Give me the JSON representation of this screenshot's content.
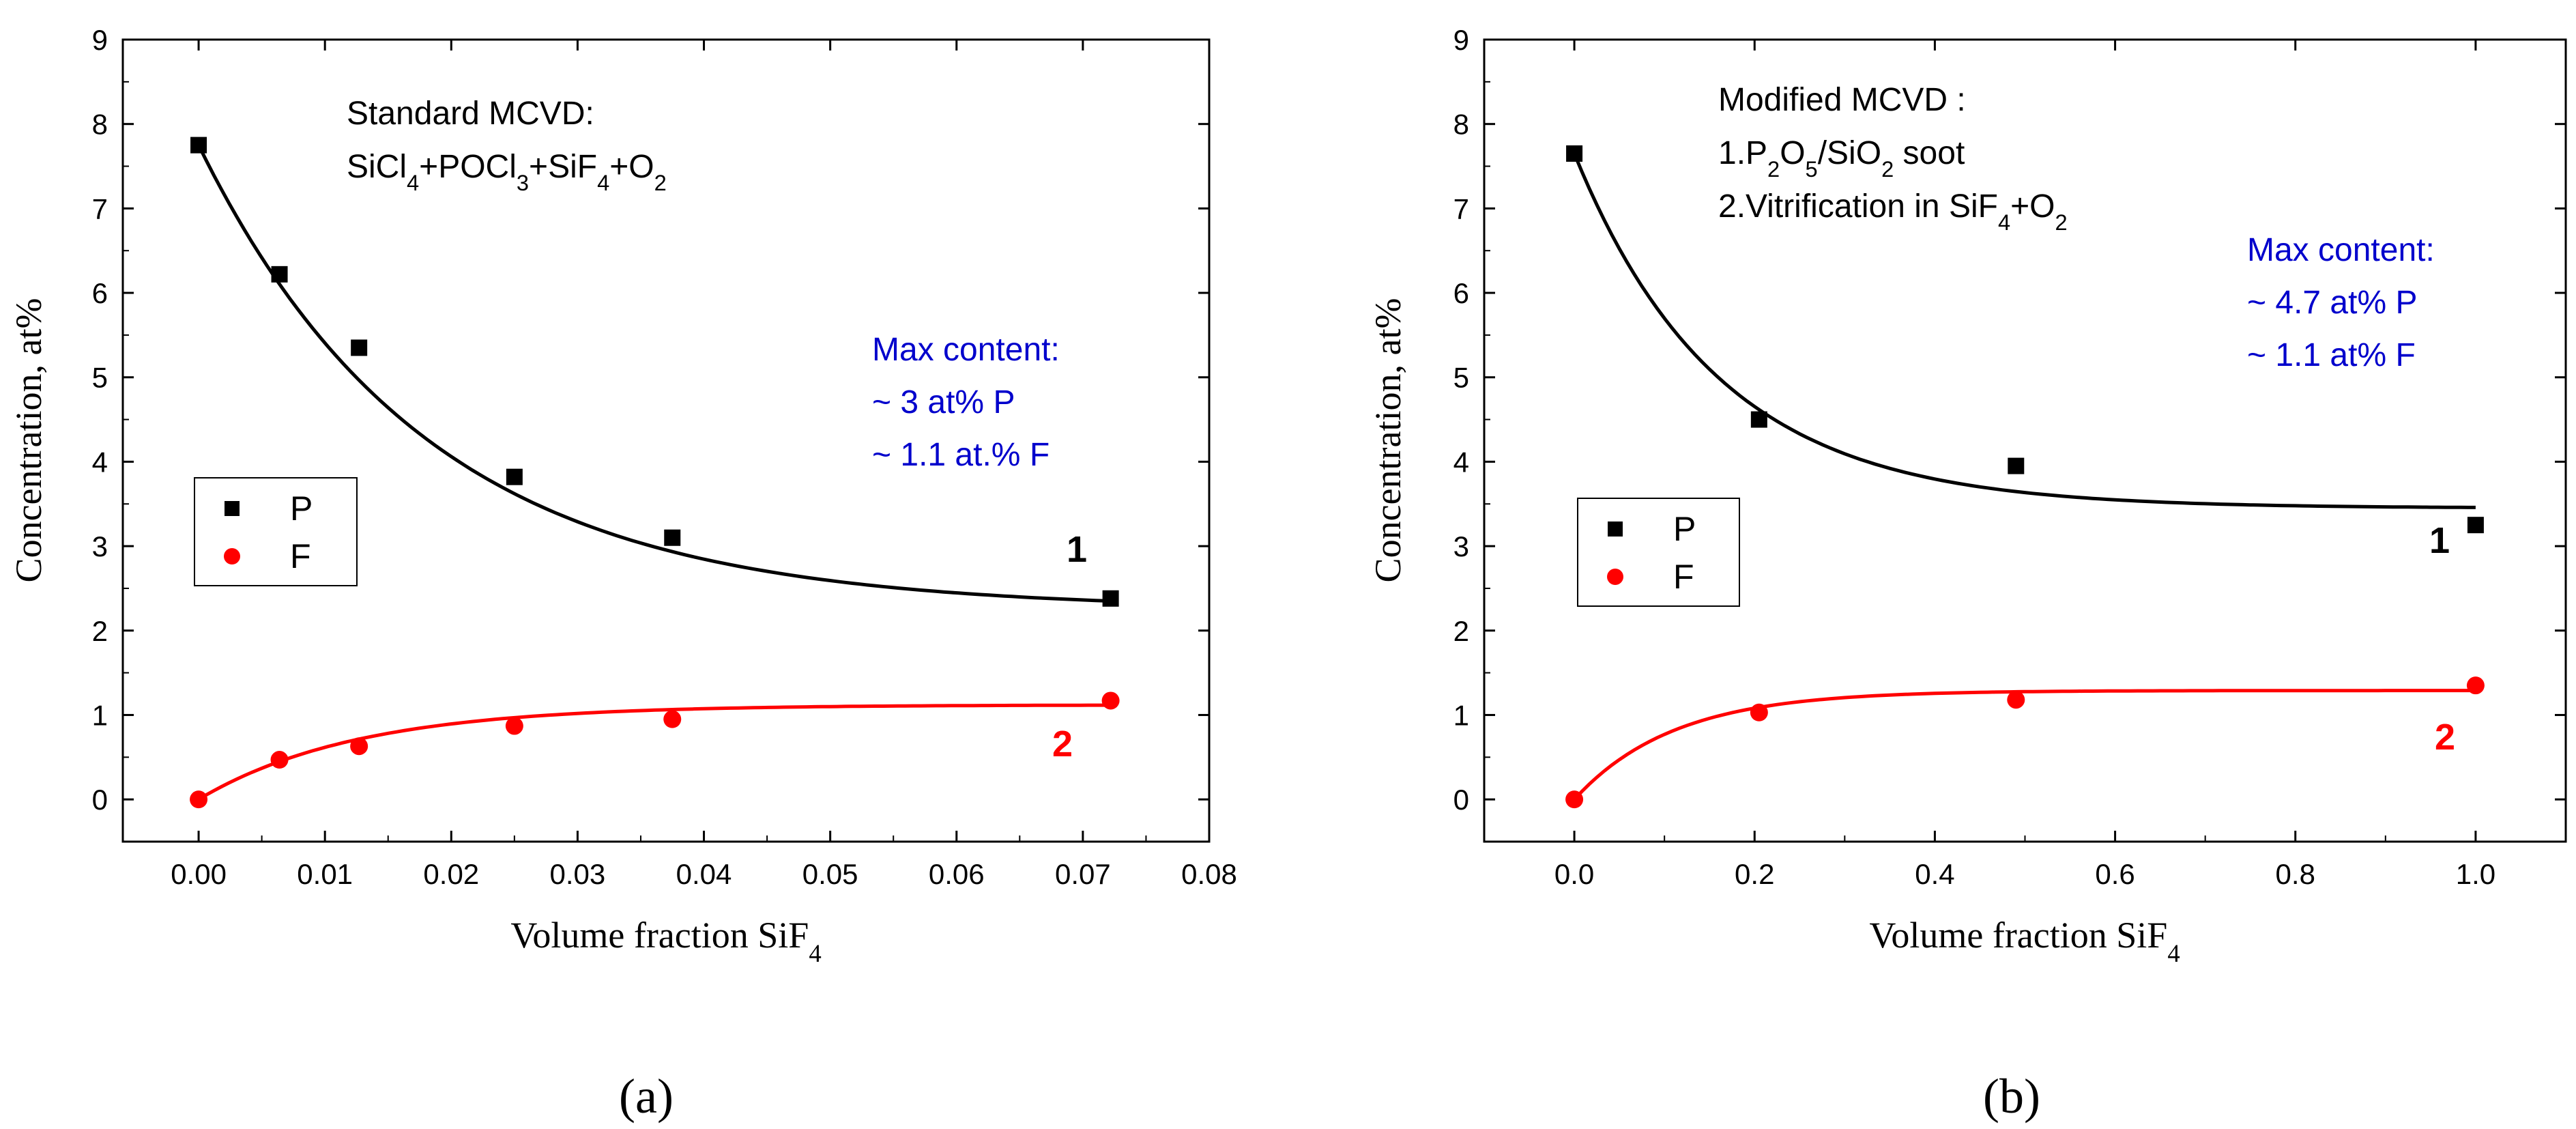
{
  "figure_labels": [
    "(a)",
    "(b)"
  ],
  "chart_data": [
    {
      "type": "scatter",
      "panel_label": "(a)",
      "xlabel": "Volume fraction SiF",
      "xlabel_sub": "4",
      "ylabel": "Concentration, at%",
      "xlim": [
        -0.006,
        0.08
      ],
      "ylim": [
        -0.5,
        9
      ],
      "xticks": [
        "0.00",
        "0.01",
        "0.02",
        "0.03",
        "0.04",
        "0.05",
        "0.06",
        "0.07",
        "0.08"
      ],
      "xtick_values": [
        0,
        0.01,
        0.02,
        0.03,
        0.04,
        0.05,
        0.06,
        0.07,
        0.08
      ],
      "yticks": [
        "0",
        "1",
        "2",
        "3",
        "4",
        "5",
        "6",
        "7",
        "8",
        "9"
      ],
      "ytick_values": [
        0,
        1,
        2,
        3,
        4,
        5,
        6,
        7,
        8,
        9
      ],
      "series": [
        {
          "name": "P",
          "marker": "square",
          "color": "#000000",
          "x": [
            0.0,
            0.0064,
            0.0127,
            0.025,
            0.0375,
            0.0722
          ],
          "y": [
            7.75,
            6.22,
            5.35,
            3.82,
            3.1,
            2.38
          ],
          "fit": {
            "model": "exponential",
            "y0": 2.25,
            "A": 5.5,
            "t": 0.018,
            "x_range": [
              0.0,
              0.0722
            ]
          },
          "curve_label": "1"
        },
        {
          "name": "F",
          "marker": "circle",
          "color": "#ff0000",
          "x": [
            0.0,
            0.0064,
            0.0127,
            0.025,
            0.0375,
            0.0722
          ],
          "y": [
            0.0,
            0.47,
            0.63,
            0.87,
            0.95,
            1.17
          ],
          "fit": {
            "model": "exponential",
            "y0": 1.12,
            "A": -1.12,
            "t": 0.0125,
            "x_range": [
              0.0,
              0.0722
            ]
          },
          "curve_label": "2"
        }
      ],
      "legend": {
        "position": "middle-left",
        "entries": [
          "P",
          "F"
        ]
      },
      "annotations": {
        "method": {
          "title": "Standard MCVD:",
          "formula_parts": [
            [
              "SiCl",
              "4"
            ],
            [
              "+POCl",
              "3"
            ],
            [
              "+SiF",
              "4"
            ],
            [
              "+O",
              "2"
            ]
          ]
        },
        "max_content": [
          "Max content:",
          "~ 3 at% P",
          "~ 1.1 at.% F"
        ],
        "max_content_color": "#0000cc"
      }
    },
    {
      "type": "scatter",
      "panel_label": "(b)",
      "xlabel": "Volume fraction SiF",
      "xlabel_sub": "4",
      "ylabel": "Concentration, at%",
      "xlim": [
        -0.1,
        1.1
      ],
      "ylim": [
        -0.5,
        9
      ],
      "xticks": [
        "0.0",
        "0.2",
        "0.4",
        "0.6",
        "0.8",
        "1.0"
      ],
      "xtick_values": [
        0,
        0.2,
        0.4,
        0.6,
        0.8,
        1.0
      ],
      "yticks": [
        "0",
        "1",
        "2",
        "3",
        "4",
        "5",
        "6",
        "7",
        "8",
        "9"
      ],
      "ytick_values": [
        0,
        1,
        2,
        3,
        4,
        5,
        6,
        7,
        8,
        9
      ],
      "series": [
        {
          "name": "P",
          "marker": "square",
          "color": "#000000",
          "x": [
            0.0,
            0.205,
            0.49,
            1.0
          ],
          "y": [
            7.65,
            4.5,
            3.95,
            3.25
          ],
          "fit": {
            "model": "exponential",
            "y0": 3.45,
            "A": 4.2,
            "t": 0.16,
            "x_range": [
              0.0,
              1.0
            ]
          },
          "curve_label": "1"
        },
        {
          "name": "F",
          "marker": "circle",
          "color": "#ff0000",
          "x": [
            0.0,
            0.205,
            0.49,
            1.0
          ],
          "y": [
            0.0,
            1.03,
            1.18,
            1.35
          ],
          "fit": {
            "model": "exponential",
            "y0": 1.29,
            "A": -1.29,
            "t": 0.11,
            "x_range": [
              0.0,
              1.0
            ]
          },
          "curve_label": "2"
        }
      ],
      "legend": {
        "position": "middle-left",
        "entries": [
          "P",
          "F"
        ]
      },
      "annotations": {
        "method": {
          "title": "Modified MCVD :",
          "step1_parts": [
            [
              "1.P",
              "2"
            ],
            [
              "O",
              "5"
            ],
            [
              "/SiO",
              "2"
            ],
            [
              " soot",
              ""
            ]
          ],
          "step2_parts": [
            [
              "2.Vitrification in SiF",
              "4"
            ],
            [
              "+O",
              "2"
            ]
          ]
        },
        "max_content": [
          "Max content:",
          "~ 4.7 at% P",
          "~ 1.1 at% F"
        ],
        "max_content_color": "#0000cc"
      }
    }
  ]
}
